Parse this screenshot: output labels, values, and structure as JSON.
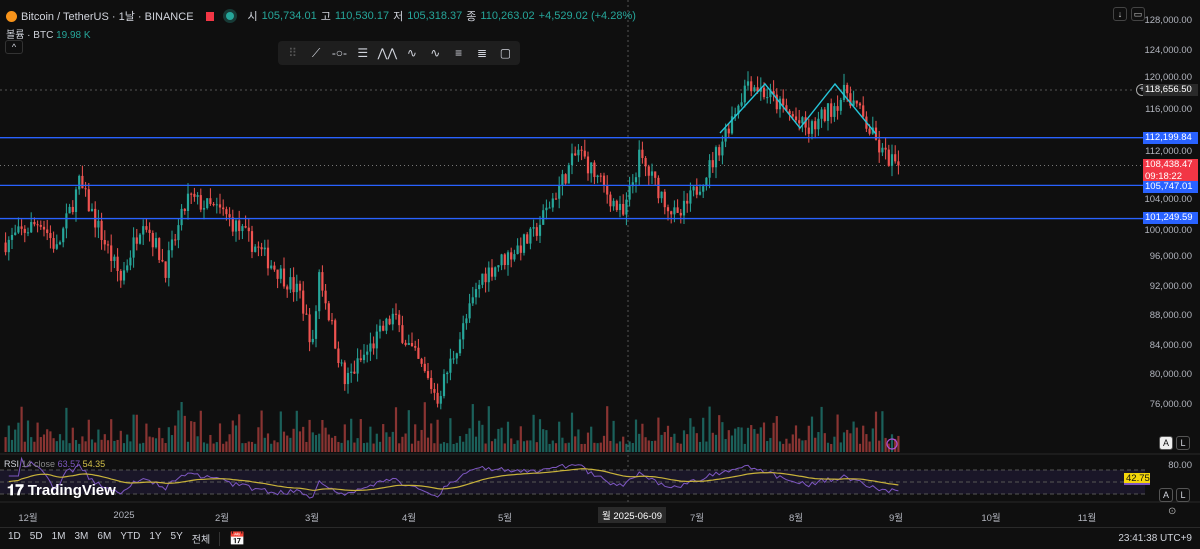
{
  "header": {
    "symbol": "Bitcoin / TetherUS · 1날 · BINANCE",
    "open_label": "시",
    "open": "105,734.01",
    "high_label": "고",
    "high": "110,530.17",
    "low_label": "저",
    "low": "105,318.37",
    "close_label": "종",
    "close": "110,263.02",
    "change": "+4,529.02 (+4.28%)"
  },
  "volume_legend": {
    "label": "볼륨 · BTC",
    "value": "19.98 K"
  },
  "rsi_legend": {
    "label": "RSI",
    "params": "14 close",
    "rsi": "63.57",
    "ma": "54.35",
    "current": "42.75",
    "level_top": "80.00"
  },
  "brand": "TradingView",
  "colors": {
    "up": "#26a69a",
    "down": "#ef5350",
    "hline": "#2962ff",
    "pattern": "#26c6da",
    "rsi": "#7e57c2",
    "rsi_ma": "#c9b33a",
    "current_price": "#f23645"
  },
  "price_axis": [
    "128,000.00",
    "124,000.00",
    "120,000.00",
    "116,000.00",
    "112,000.00",
    "104,000.00",
    "100,000.00",
    "96,000.00",
    "92,000.00",
    "88,000.00",
    "84,000.00",
    "80,000.00",
    "76,000.00"
  ],
  "price_labels": {
    "crosshair": "118,656.50",
    "line1": "112,199.84",
    "current": "108,438.47",
    "countdown": "09:18:22",
    "line2": "105,747.01",
    "line3": "101,249.59"
  },
  "time_axis": [
    "12월",
    "2025",
    "2월",
    "3월",
    "4월",
    "5월",
    "7월",
    "8월",
    "9월",
    "10월",
    "11월"
  ],
  "crosshair_date": "월 2025-06-09",
  "clock": "23:41:38 UTC+9",
  "ranges": [
    "1D",
    "5D",
    "1M",
    "3M",
    "6M",
    "YTD",
    "1Y",
    "5Y",
    "전체"
  ],
  "scale_buttons": {
    "auto": "A",
    "log": "L"
  },
  "drawing_tools": [
    "drag-handle",
    "trend-line",
    "horizontal-ray",
    "fib-retracement",
    "pattern",
    "elliott-wave",
    "abcd-pattern",
    "long-position",
    "short-position",
    "rectangle"
  ],
  "chart_data": {
    "type": "candlestick",
    "interval": "1D",
    "exchange": "BINANCE",
    "ylim": [
      72000,
      128000
    ],
    "horizontal_lines": [
      112199.84,
      105747.01,
      101249.59
    ],
    "approx_closes": [
      [
        "2024-11-24",
        98000
      ],
      [
        "2024-12-05",
        101000
      ],
      [
        "2024-12-10",
        97000
      ],
      [
        "2024-12-17",
        106000
      ],
      [
        "2024-12-30",
        93000
      ],
      [
        "2025-01-06",
        101500
      ],
      [
        "2025-01-13",
        94500
      ],
      [
        "2025-01-20",
        104000
      ],
      [
        "2025-01-31",
        102000
      ],
      [
        "2025-02-10",
        97500
      ],
      [
        "2025-02-24",
        91000
      ],
      [
        "2025-02-28",
        84000
      ],
      [
        "2025-03-02",
        94000
      ],
      [
        "2025-03-10",
        79000
      ],
      [
        "2025-03-25",
        88000
      ],
      [
        "2025-04-08",
        77000
      ],
      [
        "2025-04-22",
        93500
      ],
      [
        "2025-05-08",
        99000
      ],
      [
        "2025-05-22",
        110500
      ],
      [
        "2025-06-05",
        101500
      ],
      [
        "2025-06-10",
        109500
      ],
      [
        "2025-06-22",
        101000
      ],
      [
        "2025-07-03",
        109000
      ],
      [
        "2025-07-14",
        120000
      ],
      [
        "2025-07-20",
        118000
      ],
      [
        "2025-08-02",
        113000
      ],
      [
        "2025-08-14",
        118500
      ],
      [
        "2025-08-18",
        115500
      ],
      [
        "2025-08-25",
        110000
      ],
      [
        "2025-08-30",
        108438.47
      ]
    ]
  }
}
